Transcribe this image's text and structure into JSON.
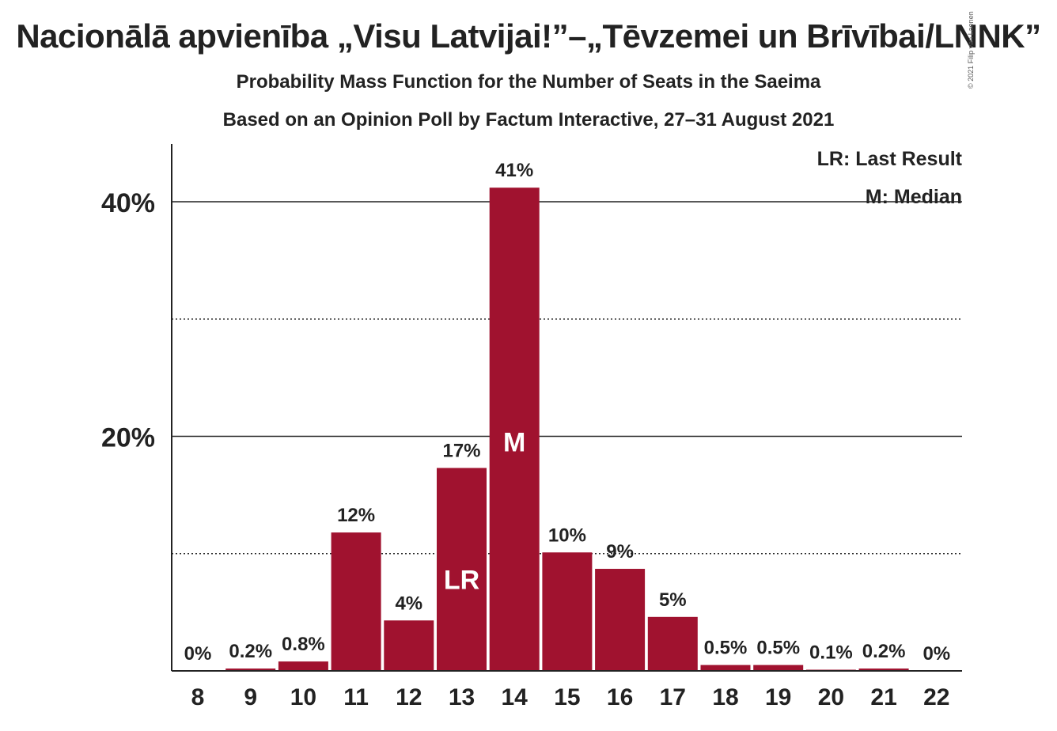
{
  "title": "Nacionālā apvienība „Visu Latvijai!”–„Tēvzemei un Brīvībai/LNNK”",
  "subtitle": "Probability Mass Function for the Number of Seats in the Saeima",
  "subtitle2": "Based on an Opinion Poll by Factum Interactive, 27–31 August 2021",
  "copyright": "© 2021 Filip van Laenen",
  "chart_data": {
    "type": "bar",
    "categories": [
      "8",
      "9",
      "10",
      "11",
      "12",
      "13",
      "14",
      "15",
      "16",
      "17",
      "18",
      "19",
      "20",
      "21",
      "22"
    ],
    "values": [
      0,
      0.2,
      0.8,
      11.8,
      4.3,
      17.3,
      41.2,
      10.1,
      8.7,
      4.6,
      0.5,
      0.5,
      0.1,
      0.2,
      0
    ],
    "data_labels": [
      "0%",
      "0.2%",
      "0.8%",
      "12%",
      "4%",
      "17%",
      "41%",
      "10%",
      "9%",
      "5%",
      "0.5%",
      "0.5%",
      "0.1%",
      "0.2%",
      "0%"
    ],
    "bar_color": "#A0122F",
    "ylim": [
      0,
      45
    ],
    "yticks": [
      {
        "value": 20,
        "label": "20%"
      },
      {
        "value": 40,
        "label": "40%"
      }
    ],
    "gridlines": {
      "solid": [
        20,
        40
      ],
      "dotted": [
        10,
        30
      ]
    },
    "markers": [
      {
        "category": "13",
        "text": "LR"
      },
      {
        "category": "14",
        "text": "M"
      }
    ],
    "legend": {
      "position": "top-right",
      "items": [
        "LR: Last Result",
        "M: Median"
      ]
    }
  }
}
